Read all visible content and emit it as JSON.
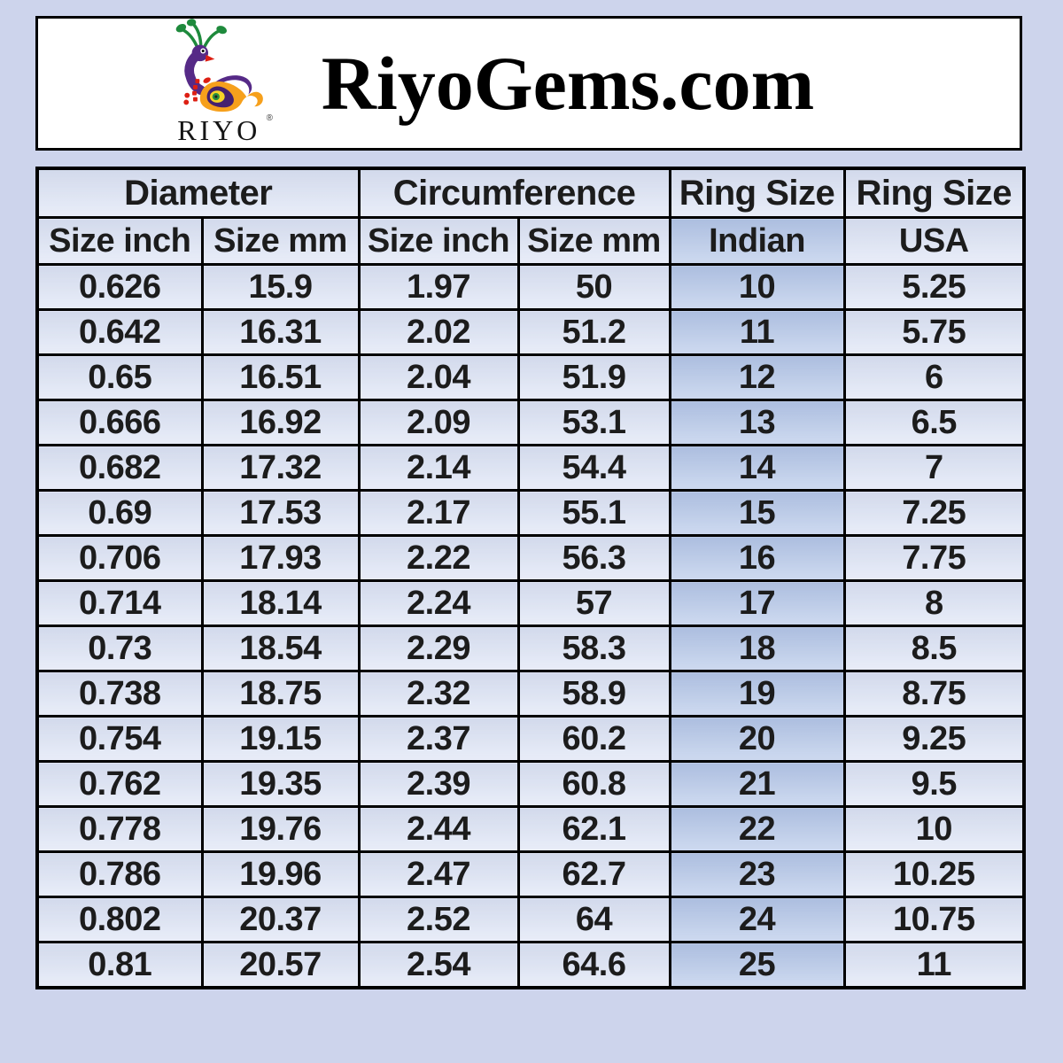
{
  "colors": {
    "page_bg": "#cdd4ec",
    "panel_bg": "#ffffff",
    "border": "#000000",
    "cell_bg": "#dce3f4",
    "indian_bg": "#b4c6e7",
    "text": "#1c1c1c",
    "logo_purple": "#562a87",
    "logo_green": "#1e8a3c",
    "logo_orange": "#f6a01c",
    "logo_red": "#dd1f13"
  },
  "header": {
    "title": "RiyoGems.com",
    "logo_text": "RIYO",
    "registered_mark": "®"
  },
  "chart_data": {
    "type": "table",
    "title": "RiyoGems.com",
    "column_groups": [
      {
        "label": "Diameter",
        "span": 2
      },
      {
        "label": "Circumference",
        "span": 2
      },
      {
        "label": "Ring Size",
        "span": 1
      },
      {
        "label": "Ring Size",
        "span": 1
      }
    ],
    "sub_headers": [
      "Size inch",
      "Size mm",
      "Size inch",
      "Size mm",
      "Indian",
      "USA"
    ],
    "rows": [
      [
        "0.626",
        "15.9",
        "1.97",
        "50",
        "10",
        "5.25"
      ],
      [
        "0.642",
        "16.31",
        "2.02",
        "51.2",
        "11",
        "5.75"
      ],
      [
        "0.65",
        "16.51",
        "2.04",
        "51.9",
        "12",
        "6"
      ],
      [
        "0.666",
        "16.92",
        "2.09",
        "53.1",
        "13",
        "6.5"
      ],
      [
        "0.682",
        "17.32",
        "2.14",
        "54.4",
        "14",
        "7"
      ],
      [
        "0.69",
        "17.53",
        "2.17",
        "55.1",
        "15",
        "7.25"
      ],
      [
        "0.706",
        "17.93",
        "2.22",
        "56.3",
        "16",
        "7.75"
      ],
      [
        "0.714",
        "18.14",
        "2.24",
        "57",
        "17",
        "8"
      ],
      [
        "0.73",
        "18.54",
        "2.29",
        "58.3",
        "18",
        "8.5"
      ],
      [
        "0.738",
        "18.75",
        "2.32",
        "58.9",
        "19",
        "8.75"
      ],
      [
        "0.754",
        "19.15",
        "2.37",
        "60.2",
        "20",
        "9.25"
      ],
      [
        "0.762",
        "19.35",
        "2.39",
        "60.8",
        "21",
        "9.5"
      ],
      [
        "0.778",
        "19.76",
        "2.44",
        "62.1",
        "22",
        "10"
      ],
      [
        "0.786",
        "19.96",
        "2.47",
        "62.7",
        "23",
        "10.25"
      ],
      [
        "0.802",
        "20.37",
        "2.52",
        "64",
        "24",
        "10.75"
      ],
      [
        "0.81",
        "20.57",
        "2.54",
        "64.6",
        "25",
        "11"
      ]
    ]
  }
}
